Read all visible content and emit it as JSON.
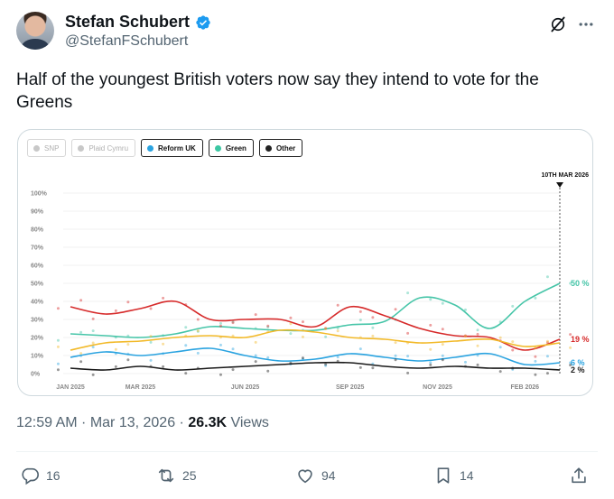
{
  "author": {
    "name": "Stefan Schubert",
    "handle": "@StefanFSchubert"
  },
  "tweet": {
    "text": "Half of the youngest British voters now say they intend to vote for the Greens"
  },
  "legend": [
    {
      "label": "SNP",
      "active": false,
      "color": "#c8c8c8"
    },
    {
      "label": "Plaid Cymru",
      "active": false,
      "color": "#c8c8c8"
    },
    {
      "label": "Reform UK",
      "active": true,
      "color": "#2aa3e0"
    },
    {
      "label": "Green",
      "active": true,
      "color": "#3cc7a3"
    },
    {
      "label": "Other",
      "active": true,
      "color": "#222222"
    }
  ],
  "chart_data": {
    "type": "line",
    "marker_label": "10TH MAR 2026",
    "x_ticks": [
      "JAN 2025",
      "MAR 2025",
      "JUN 2025",
      "SEP 2025",
      "NOV 2025",
      "FEB 2026"
    ],
    "y_ticks": [
      "0%",
      "10%",
      "20%",
      "30%",
      "40%",
      "50%",
      "60%",
      "70%",
      "80%",
      "90%",
      "100%"
    ],
    "ylim": [
      0,
      100
    ],
    "x": [
      0,
      1,
      2,
      3,
      4,
      5,
      6,
      7,
      8,
      9,
      10,
      11,
      12,
      13,
      14
    ],
    "series": [
      {
        "name": "Green",
        "color": "#46c5a8",
        "end_label": "50 %",
        "values": [
          22,
          21,
          20,
          22,
          26,
          25,
          24,
          24,
          27,
          29,
          42,
          38,
          25,
          40,
          50
        ]
      },
      {
        "name": "",
        "color": "#d62a2a",
        "end_label": "19 %",
        "values": [
          37,
          33,
          36,
          40,
          30,
          30,
          30,
          26,
          37,
          32,
          25,
          21,
          20,
          13,
          19
        ]
      },
      {
        "name": "",
        "color": "#f2b928",
        "end_label": "",
        "values": [
          13,
          17,
          18,
          20,
          21,
          20,
          24,
          23,
          20,
          19,
          17,
          18,
          19,
          15,
          17
        ]
      },
      {
        "name": "Reform UK",
        "color": "#2aa3e0",
        "end_label": "6 %",
        "values": [
          9,
          12,
          10,
          12,
          14,
          10,
          7,
          8,
          11,
          9,
          7,
          9,
          11,
          5,
          6
        ]
      },
      {
        "name": "Other",
        "color": "#1a1a1a",
        "end_label": "2 %",
        "values": [
          3,
          2,
          4,
          2,
          3,
          4,
          5,
          6,
          6,
          4,
          3,
          4,
          3,
          3,
          2
        ]
      }
    ]
  },
  "meta": {
    "time": "12:59 AM · Mar 13, 2026 · ",
    "views": "26.3K",
    "views_label": " Views"
  },
  "actions": {
    "replies": "16",
    "reposts": "25",
    "likes": "94",
    "bookmarks": "14"
  }
}
